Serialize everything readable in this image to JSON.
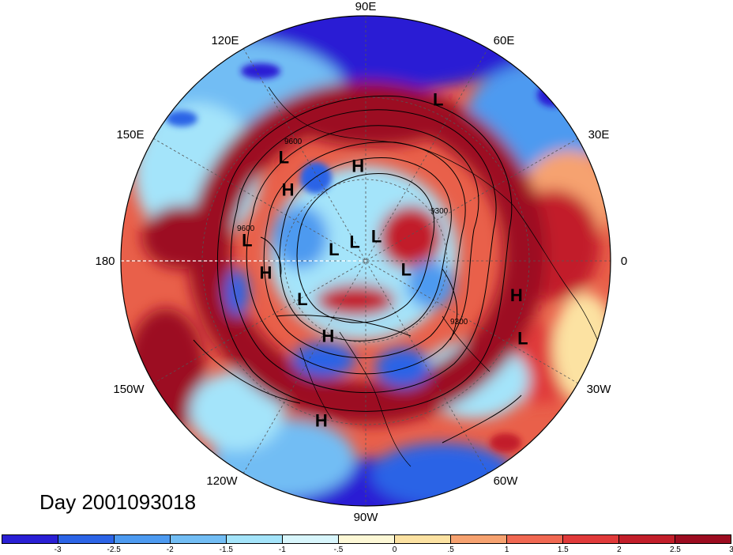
{
  "title": "Day 2001093018",
  "longitude_labels": {
    "e90": "90E",
    "e60": "60E",
    "e30": "30E",
    "zero": "0",
    "w30": "30W",
    "w60": "60W",
    "w90": "90W",
    "w120": "120W",
    "w150": "150W",
    "d180": "180",
    "e150": "150E",
    "e120": "120E"
  },
  "pressure_centers": [
    {
      "type": "L",
      "lon": 65,
      "lat": 20
    },
    {
      "type": "L",
      "lon": 130,
      "lat": 35
    },
    {
      "type": "H",
      "lon": 140,
      "lat": 45
    },
    {
      "type": "H",
      "lon": 95,
      "lat": 50
    },
    {
      "type": "L",
      "lon": 173,
      "lat": 38
    },
    {
      "type": "H",
      "lon": -170,
      "lat": 45
    },
    {
      "type": "L",
      "lon": 170,
      "lat": 75
    },
    {
      "type": "L",
      "lon": 130,
      "lat": 82
    },
    {
      "type": "L",
      "lon": 60,
      "lat": 80
    },
    {
      "type": "L",
      "lon": -20,
      "lat": 70
    },
    {
      "type": "L",
      "lon": -145,
      "lat": 55
    },
    {
      "type": "H",
      "lon": -115,
      "lat": 50
    },
    {
      "type": "H",
      "lon": -105,
      "lat": 20
    },
    {
      "type": "H",
      "lon": -15,
      "lat": 25
    },
    {
      "type": "L",
      "lon": -28,
      "lat": 18
    }
  ],
  "contour_labels": [
    "9300",
    "9600",
    "9300",
    "9600"
  ],
  "colorbar": {
    "colors": [
      "#2a1fd4",
      "#2c64e6",
      "#4d9af0",
      "#72bdf4",
      "#a4e4fa",
      "#d8f6fc",
      "#fdf8d6",
      "#fce2a2",
      "#f6a270",
      "#f06852",
      "#e03a3a",
      "#c21e2a",
      "#9c0c20"
    ],
    "ticks": [
      "-3",
      "-2.5",
      "-2",
      "-1.5",
      "-1",
      "-.5",
      "0",
      ".5",
      "1",
      "1.5",
      "2",
      "2.5",
      "3"
    ]
  }
}
